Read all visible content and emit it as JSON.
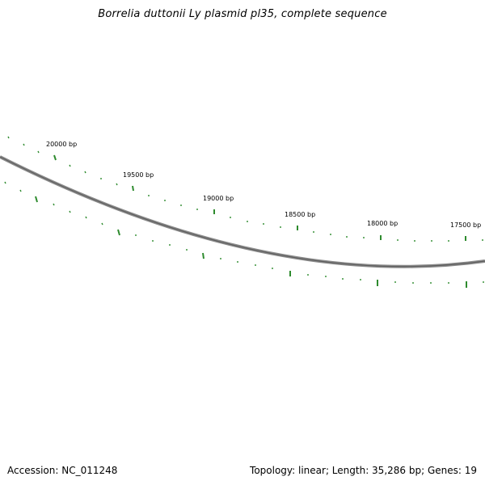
{
  "title": "Borrelia duttonii Ly plasmid pl35, complete sequence",
  "accession": "Accession: NC_011248",
  "summary": "Topology: linear; Length: 35,286 bp; Genes: 19",
  "colors": {
    "backbone": "#7a7a7a",
    "ticks": "#2e8b2e"
  },
  "tick_labels": [
    "20000 bp",
    "19500 bp",
    "19000 bp",
    "18500 bp",
    "18000 bp",
    "17500 bp"
  ]
}
